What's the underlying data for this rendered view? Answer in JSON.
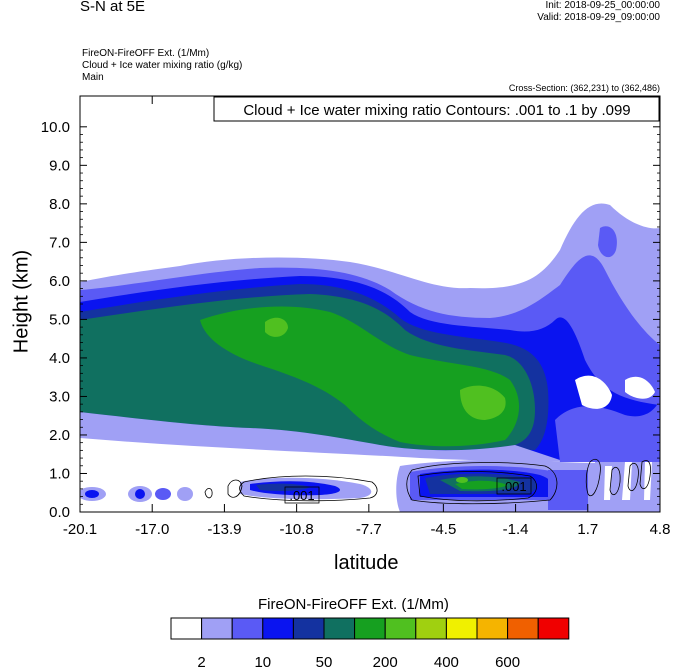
{
  "header": {
    "title": "S-N at 5E",
    "init": "Init: 2018-09-25_00:00:00",
    "valid": "Valid: 2018-09-29_09:00:00",
    "field_line1": "FireON-FireOFF Ext.   (1/Mm)",
    "field_line2": "Cloud + Ice water mixing ratio   (g/kg)",
    "field_line3": "Main",
    "cross_section": "Cross-Section: (362,231) to (362,486)"
  },
  "chart_data": {
    "type": "heatmap",
    "contour_info": "Cloud + Ice water mixing ratio Contours: .001 to .1 by .099",
    "xlabel": "latitude",
    "ylabel": "Height (km)",
    "x_ticks": [
      "-20.1",
      "-17.0",
      "-13.9",
      "-10.8",
      "-7.7",
      "-4.5",
      "-1.4",
      "1.7",
      "4.8"
    ],
    "y_ticks": [
      "0.0",
      "1.0",
      "2.0",
      "3.0",
      "4.0",
      "5.0",
      "6.0",
      "7.0",
      "8.0",
      "9.0",
      "10.0"
    ],
    "xlim": [
      -20.1,
      4.8
    ],
    "ylim": [
      0.0,
      10.8
    ],
    "contour_labels": [
      ".001",
      ".001"
    ],
    "colorbar": {
      "title": "FireON-FireOFF Ext.  (1/Mm)",
      "tick_labels": [
        "2",
        "10",
        "50",
        "200",
        "400",
        "600"
      ],
      "colors": [
        "#ffffff",
        "#a0a0f5",
        "#5a5af5",
        "#0a14f0",
        "#1432a0",
        "#107060",
        "#16a020",
        "#50c020",
        "#a0d010",
        "#f0f000",
        "#f5b400",
        "#f06000",
        "#f00000"
      ]
    }
  }
}
